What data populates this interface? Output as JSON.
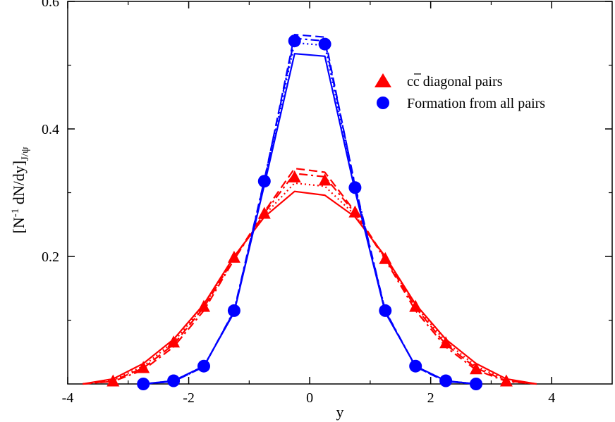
{
  "chart_data": {
    "type": "line",
    "xlabel": "y",
    "ylabel_main": "[N",
    "ylabel_sup": "-1",
    "ylabel_rest": " dN/dy]",
    "ylabel_sub": "J/ψ",
    "xlim": [
      -4,
      5
    ],
    "ylim": [
      0,
      0.6
    ],
    "x_ticks": [
      -4,
      -2,
      0,
      2,
      4
    ],
    "y_ticks": [
      0.2,
      0.4,
      0.6
    ],
    "x_tick_labels": [
      "-4",
      "-2",
      "0",
      "2",
      "4"
    ],
    "y_tick_labels": [
      "0.2",
      "0.4",
      "0.6"
    ],
    "grid": false,
    "legend_position": "top-right",
    "legend": [
      {
        "label_main": "c",
        "label_bar": "c",
        "label_rest": " diagonal pairs",
        "marker": "triangle",
        "color": "#ff0000"
      },
      {
        "label": "Formation from all pairs",
        "marker": "circle",
        "color": "#0000ff"
      }
    ],
    "series": [
      {
        "group": "diagonal",
        "color": "#ff0000",
        "marker": "triangle",
        "line_styles": [
          "solid",
          "dashed",
          "dashdot",
          "dotted"
        ],
        "x": [
          -3.75,
          -3.25,
          -2.75,
          -2.25,
          -1.75,
          -1.25,
          -0.75,
          -0.25,
          0.25,
          0.75,
          1.25,
          1.75,
          2.25,
          2.75,
          3.25,
          3.75
        ],
        "variants": [
          [
            0.0,
            0.008,
            0.032,
            0.07,
            0.125,
            0.2,
            0.262,
            0.302,
            0.296,
            0.262,
            0.2,
            0.125,
            0.07,
            0.032,
            0.008,
            0.0
          ],
          [
            0.0,
            0.005,
            0.025,
            0.062,
            0.12,
            0.197,
            0.27,
            0.338,
            0.332,
            0.27,
            0.197,
            0.12,
            0.062,
            0.025,
            0.005,
            0.0
          ],
          [
            0.0,
            0.004,
            0.022,
            0.058,
            0.115,
            0.195,
            0.268,
            0.33,
            0.325,
            0.268,
            0.195,
            0.115,
            0.058,
            0.022,
            0.004,
            0.0
          ],
          [
            0.0,
            0.006,
            0.028,
            0.066,
            0.122,
            0.198,
            0.265,
            0.315,
            0.31,
            0.265,
            0.198,
            0.122,
            0.066,
            0.028,
            0.006,
            0.0
          ]
        ],
        "markers_x": [
          -3.25,
          -2.75,
          -2.25,
          -1.75,
          -1.25,
          -0.75,
          -0.25,
          0.25,
          0.75,
          1.25,
          1.75,
          2.25,
          2.75,
          3.25
        ],
        "markers_y": [
          0.005,
          0.026,
          0.066,
          0.122,
          0.199,
          0.268,
          0.325,
          0.32,
          0.27,
          0.197,
          0.122,
          0.065,
          0.024,
          0.005
        ]
      },
      {
        "group": "all_pairs",
        "color": "#0000ff",
        "marker": "circle",
        "line_styles": [
          "solid",
          "dashed",
          "dashdot",
          "dotted"
        ],
        "x": [
          -2.75,
          -2.25,
          -1.75,
          -1.25,
          -0.75,
          -0.25,
          0.25,
          0.75,
          1.25,
          1.75,
          2.25,
          2.75
        ],
        "variants": [
          [
            0.0,
            0.005,
            0.028,
            0.112,
            0.312,
            0.518,
            0.514,
            0.303,
            0.112,
            0.028,
            0.005,
            0.0
          ],
          [
            0.0,
            0.004,
            0.027,
            0.114,
            0.318,
            0.548,
            0.544,
            0.31,
            0.114,
            0.027,
            0.004,
            0.0
          ],
          [
            0.0,
            0.004,
            0.027,
            0.115,
            0.32,
            0.542,
            0.538,
            0.312,
            0.115,
            0.027,
            0.004,
            0.0
          ],
          [
            0.0,
            0.005,
            0.028,
            0.113,
            0.315,
            0.535,
            0.531,
            0.306,
            0.113,
            0.028,
            0.005,
            0.0
          ]
        ],
        "markers_x": [
          -2.75,
          -2.25,
          -1.75,
          -1.25,
          -0.75,
          -0.25,
          0.25,
          0.75,
          1.25,
          1.75,
          2.25,
          2.75
        ],
        "markers_y": [
          0.0,
          0.005,
          0.028,
          0.115,
          0.318,
          0.538,
          0.533,
          0.308,
          0.115,
          0.028,
          0.005,
          0.0
        ]
      }
    ]
  }
}
